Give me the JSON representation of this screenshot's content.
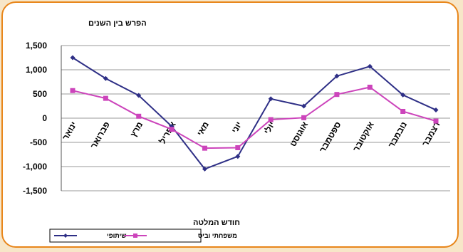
{
  "chart_data": {
    "type": "line",
    "title": "הפרש בין השנים",
    "xlabel": "חודש המלטה",
    "ylabel": "",
    "ylim": [
      -1500,
      1500
    ],
    "yticks": [
      1500,
      1000,
      500,
      0,
      -500,
      -1000,
      -1500
    ],
    "ytick_labels": [
      "1,500",
      "1,000",
      "500",
      "0",
      "-500",
      "-1,000",
      "-1,500"
    ],
    "grid": true,
    "legend_position": "bottom-left",
    "categories": [
      "ינואר",
      "פברואר",
      "מרץ",
      "אפריל",
      "מאי",
      "יוני",
      "יולי",
      "אוגוסט",
      "ספטמבר",
      "אוקטובר",
      "נובמבר",
      "דצמבר"
    ],
    "series": [
      {
        "name": "שיתופי",
        "color": "#2e2f86",
        "marker": "diamond",
        "values": [
          1250,
          820,
          470,
          -170,
          -1050,
          -790,
          400,
          250,
          870,
          1070,
          480,
          170
        ]
      },
      {
        "name": "משפחתי וביס",
        "color": "#cc44bb",
        "marker": "square",
        "values": [
          570,
          410,
          40,
          -230,
          -620,
          -610,
          -30,
          10,
          490,
          640,
          140,
          -60
        ]
      }
    ]
  }
}
